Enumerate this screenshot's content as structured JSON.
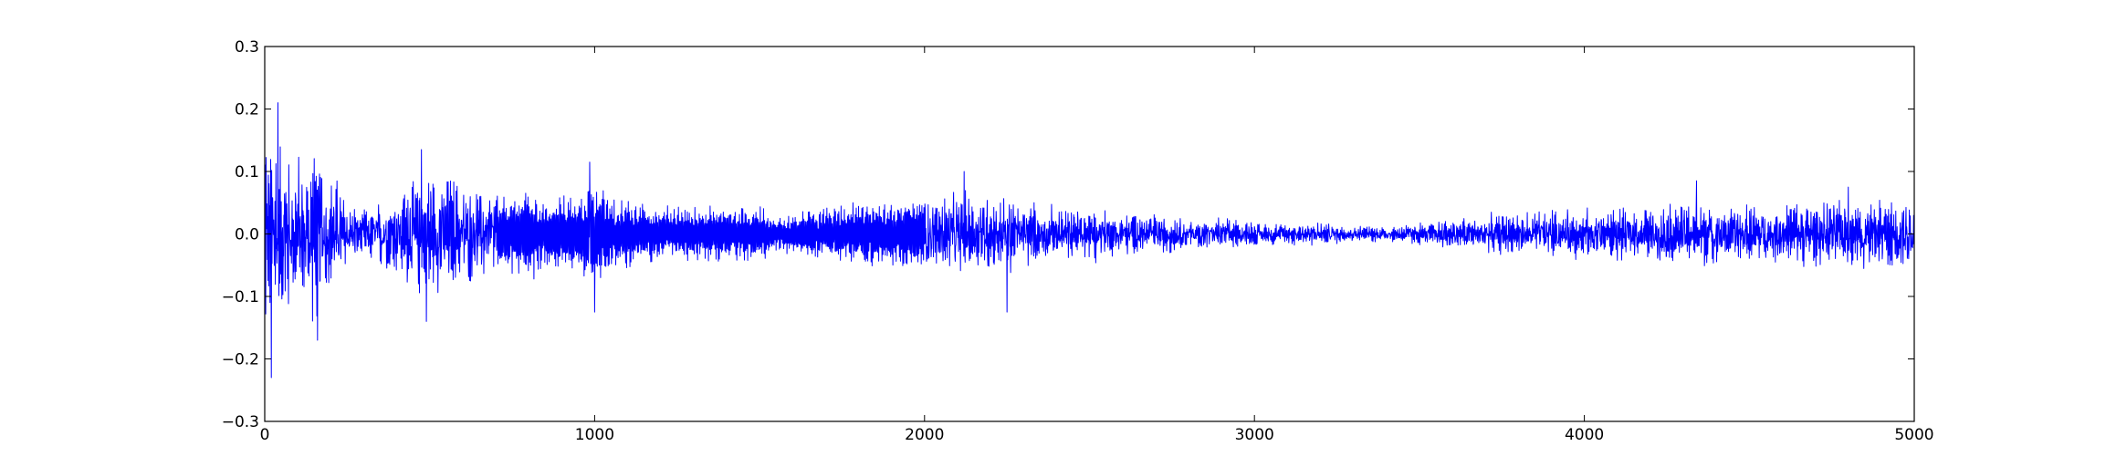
{
  "chart_data": {
    "type": "line",
    "title": "",
    "xlabel": "",
    "ylabel": "",
    "xlim": [
      0,
      5000
    ],
    "ylim": [
      -0.3,
      0.3
    ],
    "grid": false,
    "legend": "none",
    "x_ticks": [
      0,
      1000,
      2000,
      3000,
      4000,
      5000
    ],
    "x_tick_labels": [
      "0",
      "1000",
      "2000",
      "3000",
      "4000",
      "5000"
    ],
    "y_ticks": [
      0.3,
      0.2,
      0.1,
      0.0,
      -0.1,
      -0.2,
      -0.3
    ],
    "y_tick_labels": [
      "0.3",
      "0.2",
      "0.1",
      "0.0",
      "−0.1",
      "−0.2",
      "−0.3"
    ],
    "series": [
      {
        "color": "#0000ff",
        "sample_count": 5000,
        "amplitude_envelope": {
          "x": [
            0,
            25,
            50,
            100,
            150,
            200,
            250,
            300,
            350,
            400,
            450,
            500,
            550,
            600,
            650,
            700,
            750,
            800,
            850,
            900,
            950,
            1000,
            1050,
            1100,
            1200,
            1300,
            1400,
            1500,
            1550,
            1600,
            1700,
            1800,
            1900,
            2000,
            2050,
            2100,
            2150,
            2200,
            2250,
            2270,
            2300,
            2400,
            2500,
            2600,
            2700,
            2800,
            2900,
            3000,
            3100,
            3200,
            3300,
            3400,
            3500,
            3600,
            3700,
            3800,
            3900,
            4000,
            4100,
            4200,
            4300,
            4400,
            4500,
            4600,
            4700,
            4800,
            4900,
            5000
          ],
          "y": [
            0.22,
            0.21,
            0.18,
            0.15,
            0.16,
            0.12,
            0.06,
            0.05,
            0.06,
            0.08,
            0.11,
            0.13,
            0.11,
            0.09,
            0.09,
            0.08,
            0.08,
            0.09,
            0.07,
            0.07,
            0.07,
            0.1,
            0.07,
            0.06,
            0.05,
            0.05,
            0.05,
            0.05,
            0.03,
            0.04,
            0.05,
            0.06,
            0.06,
            0.08,
            0.08,
            0.08,
            0.07,
            0.07,
            0.1,
            0.07,
            0.06,
            0.05,
            0.05,
            0.04,
            0.035,
            0.03,
            0.03,
            0.025,
            0.02,
            0.02,
            0.015,
            0.015,
            0.02,
            0.03,
            0.035,
            0.04,
            0.045,
            0.045,
            0.05,
            0.05,
            0.06,
            0.06,
            0.055,
            0.055,
            0.06,
            0.06,
            0.065,
            0.07
          ]
        },
        "peaks": [
          {
            "x": 20,
            "y": -0.23
          },
          {
            "x": 40,
            "y": 0.21
          },
          {
            "x": 160,
            "y": -0.17
          },
          {
            "x": 475,
            "y": 0.135
          },
          {
            "x": 490,
            "y": -0.14
          },
          {
            "x": 985,
            "y": 0.115
          },
          {
            "x": 1000,
            "y": -0.125
          },
          {
            "x": 2120,
            "y": 0.1
          },
          {
            "x": 2250,
            "y": -0.125
          },
          {
            "x": 4340,
            "y": 0.085
          },
          {
            "x": 4800,
            "y": 0.075
          }
        ]
      }
    ]
  }
}
